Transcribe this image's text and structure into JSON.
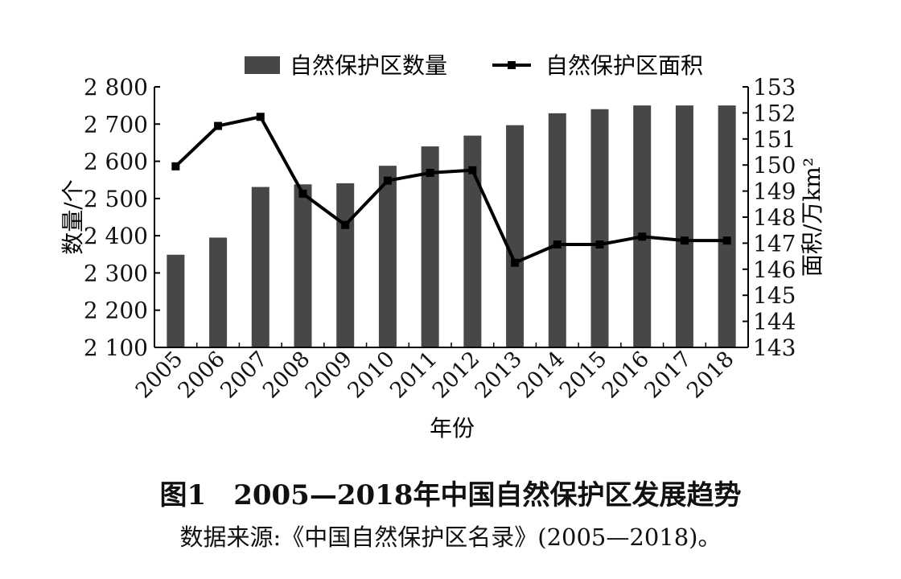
{
  "chart_data": {
    "type": "bar+line",
    "categories": [
      "2005",
      "2006",
      "2007",
      "2008",
      "2009",
      "2010",
      "2011",
      "2012",
      "2013",
      "2014",
      "2015",
      "2016",
      "2017",
      "2018"
    ],
    "series": [
      {
        "name": "自然保护区数量",
        "type": "bar",
        "axis": "left",
        "values": [
          2349,
          2395,
          2531,
          2538,
          2541,
          2588,
          2640,
          2669,
          2697,
          2729,
          2740,
          2750,
          2750,
          2750
        ]
      },
      {
        "name": "自然保护区面积",
        "type": "line",
        "axis": "right",
        "values": [
          149.95,
          151.5,
          151.85,
          148.9,
          147.7,
          149.4,
          149.7,
          149.8,
          146.25,
          146.95,
          146.95,
          147.25,
          147.1,
          147.1
        ]
      }
    ],
    "xlabel": "年份",
    "ylabel_left": "数量/个",
    "ylabel_right": "面积/万km²",
    "yticks_left": [
      "2 100",
      "2 200",
      "2 300",
      "2 400",
      "2 500",
      "2 600",
      "2 700",
      "2 800"
    ],
    "yticks_right": [
      "143",
      "144",
      "145",
      "146",
      "147",
      "148",
      "149",
      "150",
      "151",
      "152",
      "153"
    ],
    "ylim_left": [
      2100,
      2800
    ],
    "ylim_right": [
      143,
      153
    ],
    "legend_position": "top",
    "grid": false,
    "colors": {
      "bar": "#474747",
      "line": "#000000",
      "text": "#111111"
    }
  },
  "caption": {
    "title": "图1　2005—2018年中国自然保护区发展趋势",
    "source": "数据来源:《中国自然保护区名录》(2005—2018)。"
  }
}
